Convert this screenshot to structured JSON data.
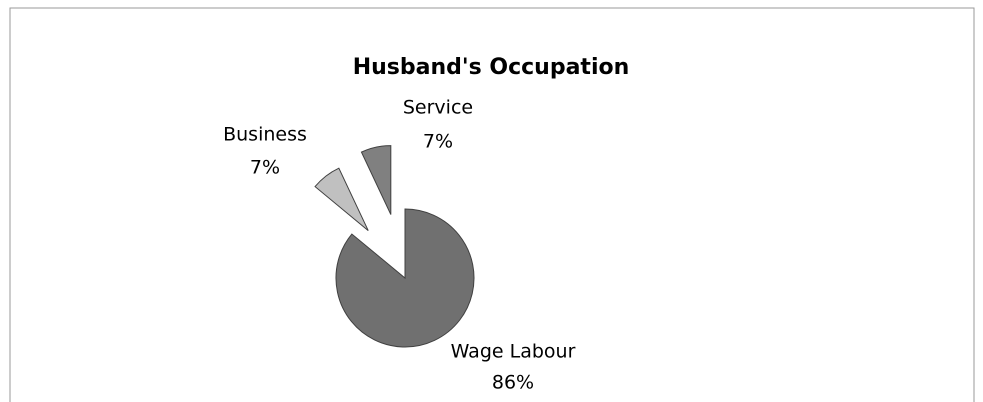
{
  "chart_data": {
    "type": "pie",
    "title": "Husband's Occupation",
    "categories": [
      "Wage Labour",
      "Business",
      "Service"
    ],
    "values": [
      86,
      7,
      7
    ],
    "value_labels": [
      "86%",
      "7%",
      "7%"
    ],
    "colors": [
      "#707070",
      "#c0c0c0",
      "#808080"
    ]
  }
}
